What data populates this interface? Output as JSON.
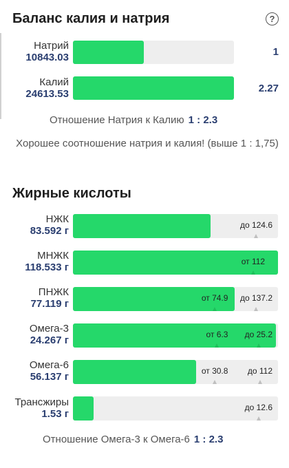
{
  "sodium_potassium": {
    "title": "Баланс калия и натрия",
    "help_icon": "question-circle-icon",
    "sodium": {
      "label": "Натрий",
      "value": "10843.03",
      "ratio": "1",
      "fill_fraction": 0.44
    },
    "potassium": {
      "label": "Калий",
      "value": "24613.53",
      "ratio": "2.27",
      "fill_fraction": 1.0
    },
    "ratio_label": "Отношение Натрия к Калию",
    "ratio_value": "1 : 2.3",
    "note": "Хорошее соотношение натрия и калия! (выше 1 : 1,75)"
  },
  "fatty_acids": {
    "title": "Жирные кислоты",
    "rows": [
      {
        "label": "НЖК",
        "value": "83.592 г",
        "fill_fraction": 0.67,
        "markers": [
          {
            "text": "до 124.6",
            "fraction": 1.0
          }
        ]
      },
      {
        "label": "МНЖК",
        "value": "118.533 г",
        "fill_fraction": 1.0,
        "markers": [
          {
            "text": "от 112",
            "fraction": 0.95
          }
        ]
      },
      {
        "label": "ПНЖК",
        "value": "77.119 г",
        "fill_fraction": 0.79,
        "markers": [
          {
            "text": "от 74.9",
            "fraction": 0.77
          },
          {
            "text": "до 137.2",
            "fraction": 1.0
          }
        ]
      },
      {
        "label": "Омега-3",
        "value": "24.267 г",
        "fill_fraction": 0.99,
        "markers": [
          {
            "text": "от 6.3",
            "fraction": 0.77
          },
          {
            "text": "до 25.2",
            "fraction": 1.0
          }
        ]
      },
      {
        "label": "Омега-6",
        "value": "56.137 г",
        "fill_fraction": 0.6,
        "markers": [
          {
            "text": "от 30.8",
            "fraction": 0.77
          },
          {
            "text": "до 112",
            "fraction": 1.0
          }
        ]
      },
      {
        "label": "Трансжиры",
        "value": "1.53 г",
        "fill_fraction": 0.1,
        "markers": [
          {
            "text": "до 12.6",
            "fraction": 1.0
          }
        ]
      }
    ],
    "ratio_label": "Отношение Омега-3 к Омега-6",
    "ratio_value": "1 : 2.3"
  },
  "colors": {
    "fill": "#25d86a",
    "track": "#eeeeee",
    "value_text": "#2a3e70"
  }
}
